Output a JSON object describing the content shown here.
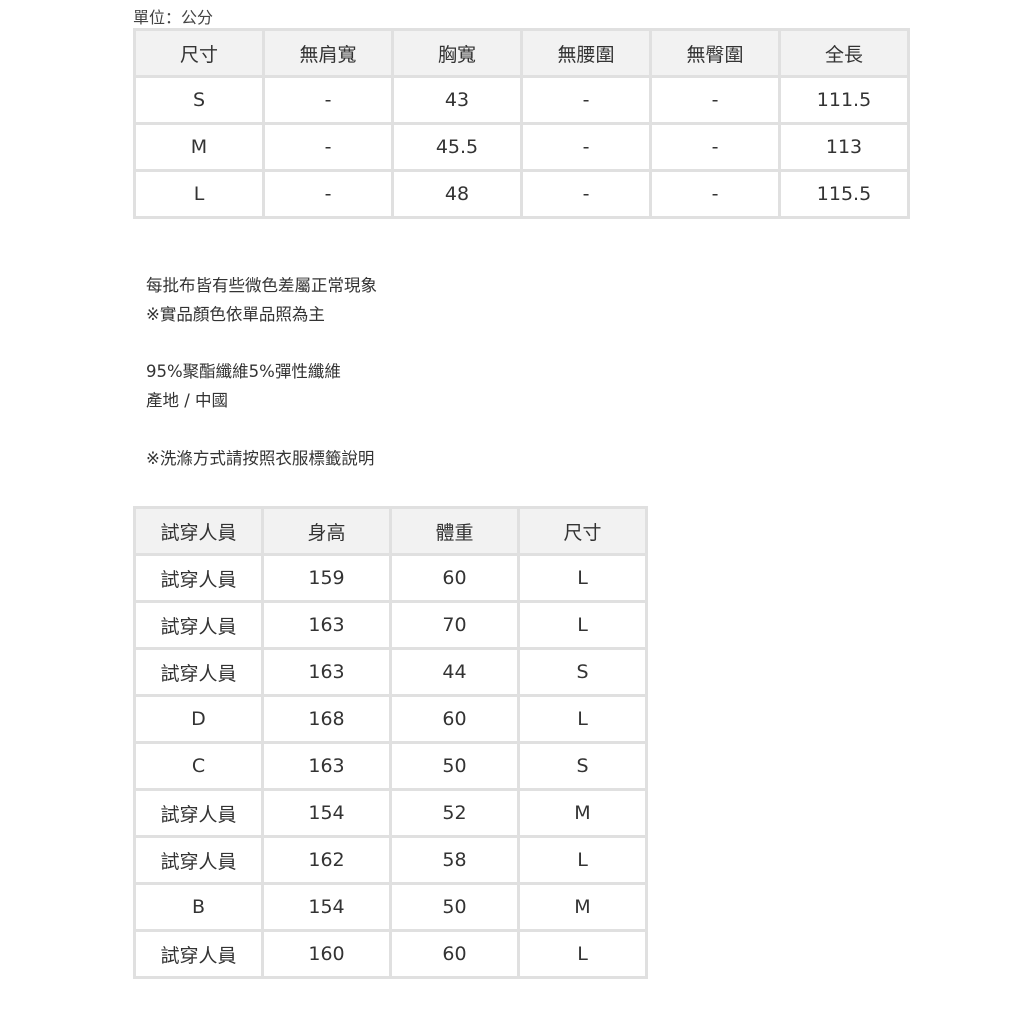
{
  "unit_label": "單位：公分",
  "size_table": {
    "headers": [
      "尺寸",
      "無肩寬",
      "胸寬",
      "無腰圍",
      "無臀圍",
      "全長"
    ],
    "rows": [
      [
        "S",
        "-",
        "43",
        "-",
        "-",
        "111.5"
      ],
      [
        "M",
        "-",
        "45.5",
        "-",
        "-",
        "113"
      ],
      [
        "L",
        "-",
        "48",
        "-",
        "-",
        "115.5"
      ]
    ]
  },
  "notes": [
    "每批布皆有些微色差屬正常現象",
    "※實品顏色依單品照為主",
    "95%聚酯纖維5%彈性纖維",
    "產地 / 中國",
    "※洗滌方式請按照衣服標籤說明"
  ],
  "fit_table": {
    "headers": [
      "試穿人員",
      "身高",
      "體重",
      "尺寸"
    ],
    "rows": [
      [
        "試穿人員",
        "159",
        "60",
        "L"
      ],
      [
        "試穿人員",
        "163",
        "70",
        "L"
      ],
      [
        "試穿人員",
        "163",
        "44",
        "S"
      ],
      [
        "D",
        "168",
        "60",
        "L"
      ],
      [
        "C",
        "163",
        "50",
        "S"
      ],
      [
        "試穿人員",
        "154",
        "52",
        "M"
      ],
      [
        "試穿人員",
        "162",
        "58",
        "L"
      ],
      [
        "B",
        "154",
        "50",
        "M"
      ],
      [
        "試穿人員",
        "160",
        "60",
        "L"
      ]
    ]
  }
}
